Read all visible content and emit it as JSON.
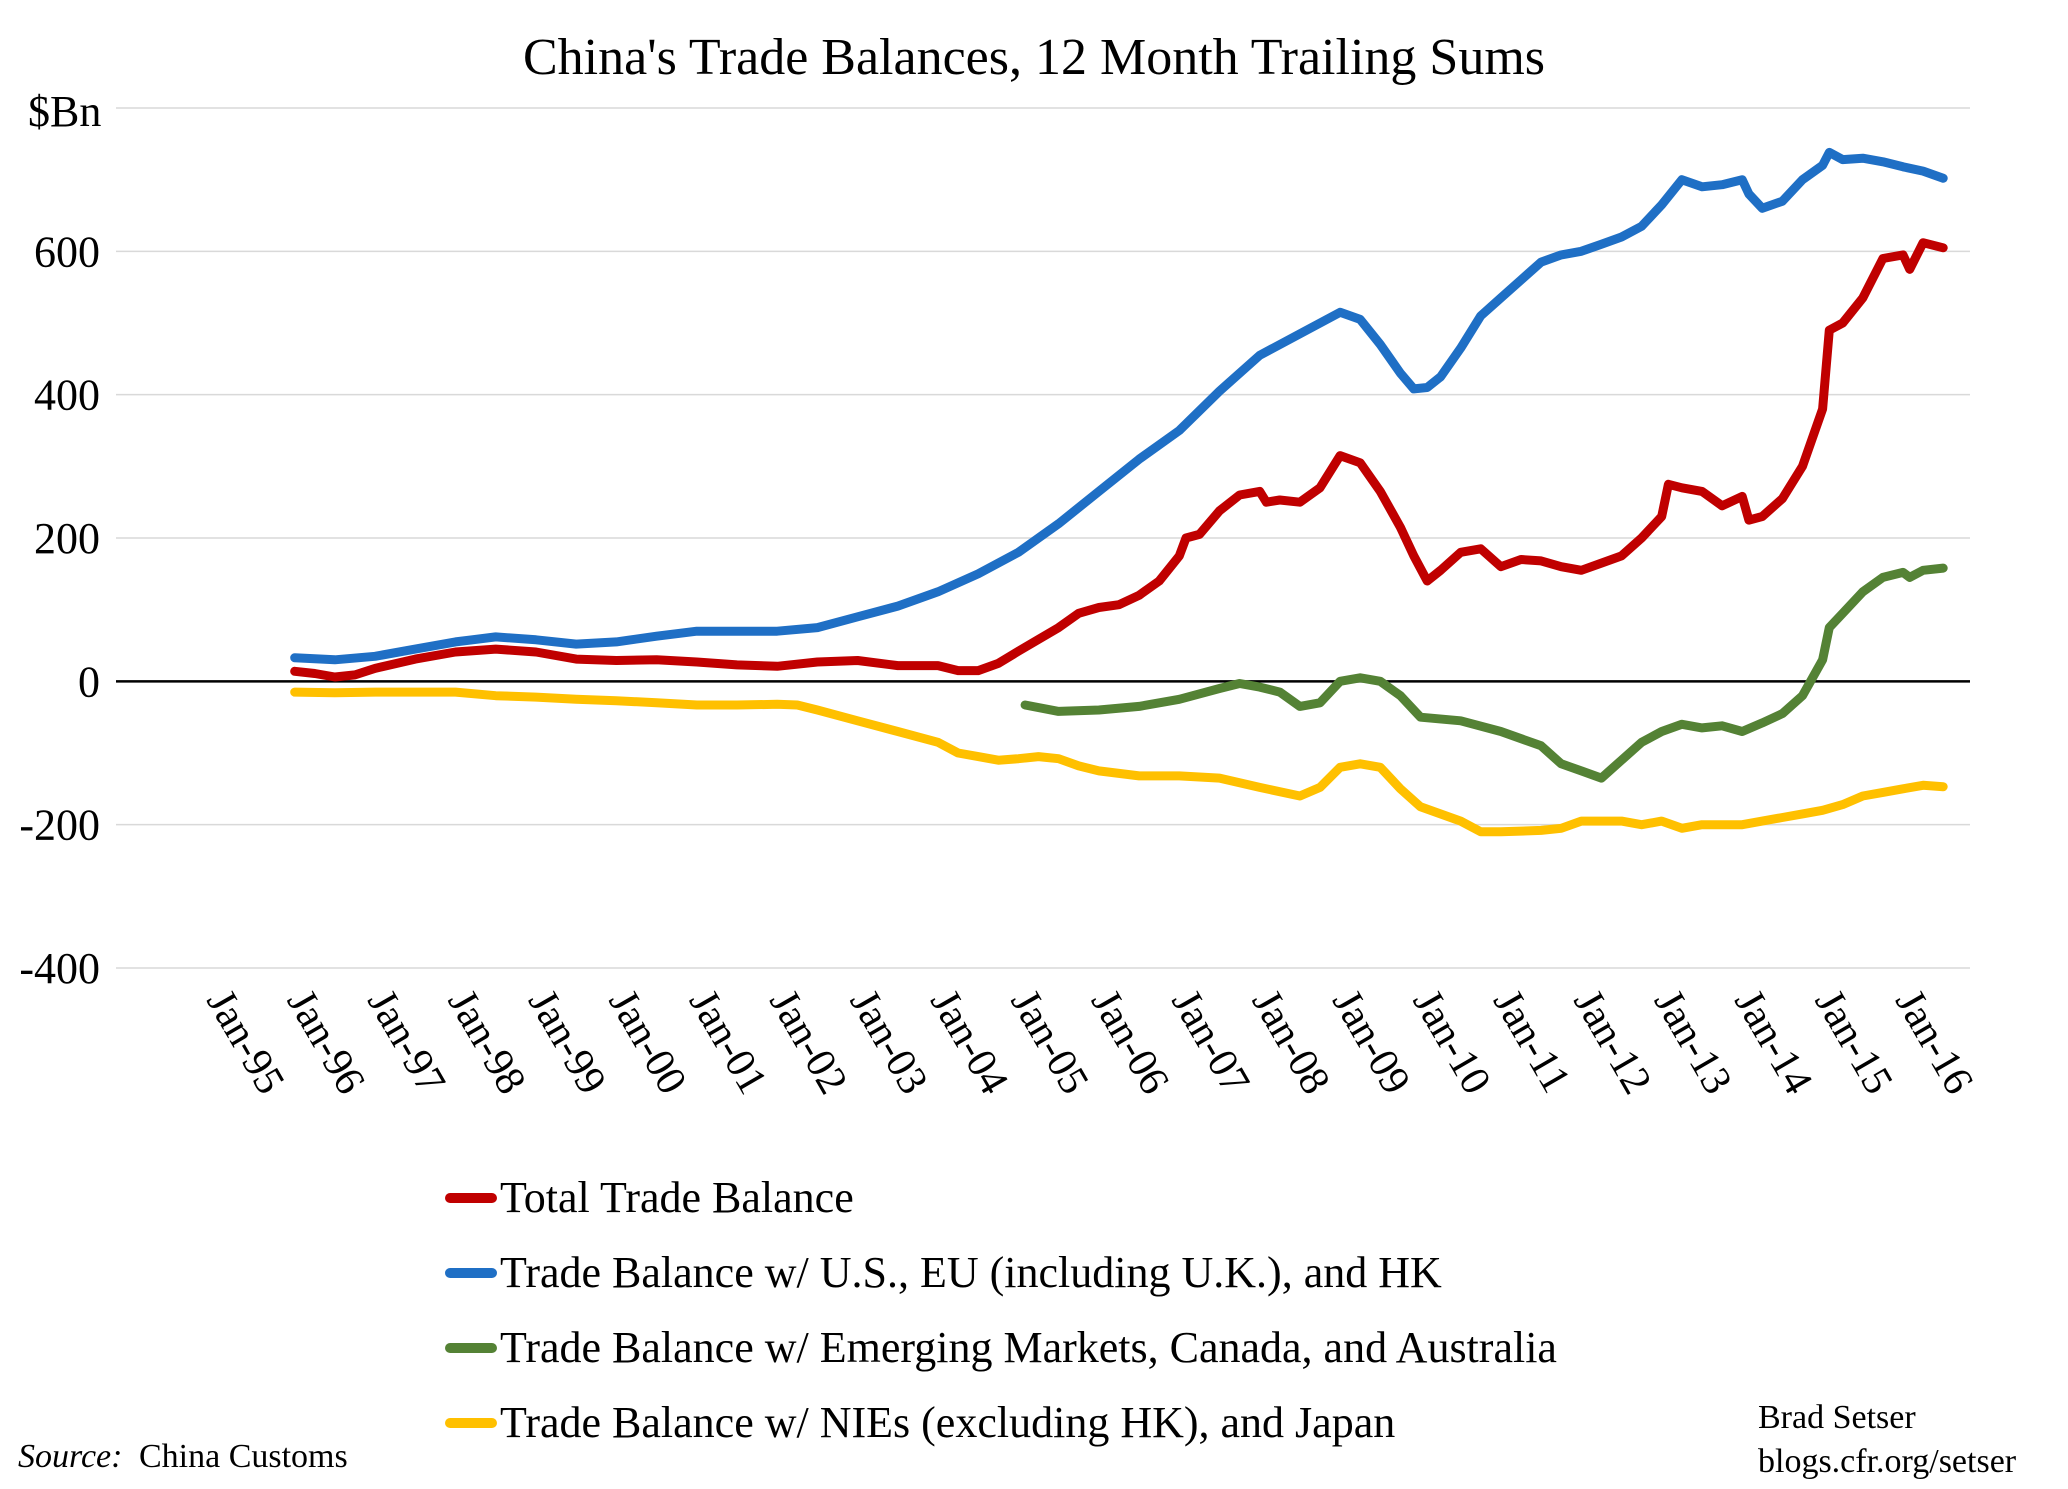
{
  "chart_data": {
    "type": "line",
    "title": "China's Trade Balances, 12 Month Trailing Sums",
    "ylabel": "$Bn",
    "xlabel": "",
    "ylim": [
      -400,
      800
    ],
    "yticks": [
      -400,
      -200,
      0,
      200,
      400,
      600
    ],
    "xlim": [
      "1995-01",
      "2016-12"
    ],
    "x_ticks": [
      "Jan-95",
      "Jan-96",
      "Jan-97",
      "Jan-98",
      "Jan-99",
      "Jan-00",
      "Jan-01",
      "Jan-02",
      "Jan-03",
      "Jan-04",
      "Jan-05",
      "Jan-06",
      "Jan-07",
      "Jan-08",
      "Jan-09",
      "Jan-10",
      "Jan-11",
      "Jan-12",
      "Jan-13",
      "Jan-14",
      "Jan-15",
      "Jan-16"
    ],
    "grid": "horizontal",
    "legend_position": "bottom",
    "series": [
      {
        "name": "Total Trade Balance",
        "color": "#c00000",
        "points": [
          [
            "1995-12",
            14
          ],
          [
            "1996-03",
            11
          ],
          [
            "1996-06",
            6
          ],
          [
            "1996-09",
            9
          ],
          [
            "1996-12",
            18
          ],
          [
            "1997-06",
            31
          ],
          [
            "1997-12",
            41
          ],
          [
            "1998-06",
            45
          ],
          [
            "1998-12",
            41
          ],
          [
            "1999-06",
            31
          ],
          [
            "1999-12",
            29
          ],
          [
            "2000-06",
            30
          ],
          [
            "2000-12",
            27
          ],
          [
            "2001-06",
            23
          ],
          [
            "2001-12",
            21
          ],
          [
            "2002-06",
            27
          ],
          [
            "2002-12",
            29
          ],
          [
            "2003-06",
            22
          ],
          [
            "2003-12",
            22
          ],
          [
            "2004-03",
            15
          ],
          [
            "2004-06",
            15
          ],
          [
            "2004-09",
            25
          ],
          [
            "2004-12",
            42
          ],
          [
            "2005-06",
            75
          ],
          [
            "2005-09",
            95
          ],
          [
            "2005-12",
            103
          ],
          [
            "2006-03",
            107
          ],
          [
            "2006-06",
            120
          ],
          [
            "2006-09",
            140
          ],
          [
            "2006-12",
            175
          ],
          [
            "2007-01",
            200
          ],
          [
            "2007-03",
            205
          ],
          [
            "2007-06",
            238
          ],
          [
            "2007-09",
            260
          ],
          [
            "2007-12",
            265
          ],
          [
            "2008-01",
            250
          ],
          [
            "2008-03",
            253
          ],
          [
            "2008-06",
            250
          ],
          [
            "2008-09",
            270
          ],
          [
            "2008-12",
            315
          ],
          [
            "2009-03",
            305
          ],
          [
            "2009-06",
            265
          ],
          [
            "2009-09",
            215
          ],
          [
            "2009-11",
            175
          ],
          [
            "2010-01",
            140
          ],
          [
            "2010-03",
            155
          ],
          [
            "2010-06",
            180
          ],
          [
            "2010-09",
            185
          ],
          [
            "2010-12",
            160
          ],
          [
            "2011-03",
            170
          ],
          [
            "2011-06",
            168
          ],
          [
            "2011-09",
            160
          ],
          [
            "2011-12",
            155
          ],
          [
            "2012-03",
            165
          ],
          [
            "2012-06",
            175
          ],
          [
            "2012-09",
            200
          ],
          [
            "2012-12",
            230
          ],
          [
            "2013-01",
            275
          ],
          [
            "2013-03",
            270
          ],
          [
            "2013-06",
            265
          ],
          [
            "2013-09",
            245
          ],
          [
            "2013-12",
            258
          ],
          [
            "2014-01",
            225
          ],
          [
            "2014-03",
            230
          ],
          [
            "2014-06",
            255
          ],
          [
            "2014-09",
            300
          ],
          [
            "2014-12",
            380
          ],
          [
            "2015-01",
            490
          ],
          [
            "2015-03",
            500
          ],
          [
            "2015-06",
            535
          ],
          [
            "2015-09",
            590
          ],
          [
            "2015-12",
            595
          ],
          [
            "2016-01",
            575
          ],
          [
            "2016-03",
            612
          ],
          [
            "2016-06",
            605
          ]
        ]
      },
      {
        "name": "Trade Balance w/ U.S., EU (including U.K.), and HK",
        "color": "#1f6fc5",
        "points": [
          [
            "1995-12",
            33
          ],
          [
            "1996-06",
            30
          ],
          [
            "1996-12",
            35
          ],
          [
            "1997-06",
            45
          ],
          [
            "1997-12",
            55
          ],
          [
            "1998-06",
            62
          ],
          [
            "1998-12",
            58
          ],
          [
            "1999-06",
            52
          ],
          [
            "1999-12",
            55
          ],
          [
            "2000-06",
            63
          ],
          [
            "2000-12",
            70
          ],
          [
            "2001-06",
            70
          ],
          [
            "2001-12",
            70
          ],
          [
            "2002-06",
            75
          ],
          [
            "2002-12",
            90
          ],
          [
            "2003-06",
            105
          ],
          [
            "2003-12",
            125
          ],
          [
            "2004-06",
            150
          ],
          [
            "2004-12",
            180
          ],
          [
            "2005-06",
            220
          ],
          [
            "2005-12",
            265
          ],
          [
            "2006-06",
            310
          ],
          [
            "2006-12",
            350
          ],
          [
            "2007-06",
            405
          ],
          [
            "2007-12",
            455
          ],
          [
            "2008-06",
            485
          ],
          [
            "2008-12",
            515
          ],
          [
            "2009-03",
            505
          ],
          [
            "2009-06",
            470
          ],
          [
            "2009-09",
            430
          ],
          [
            "2009-11",
            408
          ],
          [
            "2010-01",
            410
          ],
          [
            "2010-03",
            425
          ],
          [
            "2010-06",
            465
          ],
          [
            "2010-09",
            510
          ],
          [
            "2010-12",
            535
          ],
          [
            "2011-03",
            560
          ],
          [
            "2011-06",
            585
          ],
          [
            "2011-09",
            595
          ],
          [
            "2011-12",
            600
          ],
          [
            "2012-03",
            610
          ],
          [
            "2012-06",
            620
          ],
          [
            "2012-09",
            635
          ],
          [
            "2012-12",
            665
          ],
          [
            "2013-03",
            700
          ],
          [
            "2013-06",
            690
          ],
          [
            "2013-09",
            693
          ],
          [
            "2013-12",
            700
          ],
          [
            "2014-01",
            680
          ],
          [
            "2014-03",
            660
          ],
          [
            "2014-06",
            670
          ],
          [
            "2014-09",
            700
          ],
          [
            "2014-12",
            720
          ],
          [
            "2015-01",
            738
          ],
          [
            "2015-03",
            728
          ],
          [
            "2015-06",
            730
          ],
          [
            "2015-09",
            725
          ],
          [
            "2015-12",
            718
          ],
          [
            "2016-03",
            712
          ],
          [
            "2016-06",
            702
          ]
        ]
      },
      {
        "name": "Trade Balance w/ Emerging Markets, Canada, and Australia",
        "color": "#548235",
        "points": [
          [
            "2005-01",
            -33
          ],
          [
            "2005-06",
            -42
          ],
          [
            "2005-12",
            -40
          ],
          [
            "2006-06",
            -35
          ],
          [
            "2006-12",
            -25
          ],
          [
            "2007-06",
            -10
          ],
          [
            "2007-09",
            -3
          ],
          [
            "2007-12",
            -8
          ],
          [
            "2008-03",
            -15
          ],
          [
            "2008-06",
            -35
          ],
          [
            "2008-09",
            -30
          ],
          [
            "2008-12",
            0
          ],
          [
            "2009-03",
            5
          ],
          [
            "2009-06",
            0
          ],
          [
            "2009-09",
            -20
          ],
          [
            "2009-12",
            -50
          ],
          [
            "2010-06",
            -55
          ],
          [
            "2010-12",
            -70
          ],
          [
            "2011-06",
            -90
          ],
          [
            "2011-09",
            -115
          ],
          [
            "2011-12",
            -125
          ],
          [
            "2012-03",
            -135
          ],
          [
            "2012-06",
            -110
          ],
          [
            "2012-09",
            -85
          ],
          [
            "2012-12",
            -70
          ],
          [
            "2013-03",
            -60
          ],
          [
            "2013-06",
            -65
          ],
          [
            "2013-09",
            -62
          ],
          [
            "2013-12",
            -70
          ],
          [
            "2014-03",
            -58
          ],
          [
            "2014-06",
            -45
          ],
          [
            "2014-09",
            -20
          ],
          [
            "2014-12",
            30
          ],
          [
            "2015-01",
            75
          ],
          [
            "2015-03",
            95
          ],
          [
            "2015-06",
            125
          ],
          [
            "2015-09",
            145
          ],
          [
            "2015-12",
            152
          ],
          [
            "2016-01",
            145
          ],
          [
            "2016-03",
            155
          ],
          [
            "2016-06",
            158
          ]
        ]
      },
      {
        "name": "Trade Balance w/ NIEs (excluding HK), and Japan",
        "color": "#ffc000",
        "points": [
          [
            "1995-12",
            -15
          ],
          [
            "1996-06",
            -16
          ],
          [
            "1996-12",
            -15
          ],
          [
            "1997-06",
            -15
          ],
          [
            "1997-12",
            -15
          ],
          [
            "1998-06",
            -20
          ],
          [
            "1998-12",
            -22
          ],
          [
            "1999-06",
            -25
          ],
          [
            "1999-12",
            -27
          ],
          [
            "2000-06",
            -30
          ],
          [
            "2000-12",
            -33
          ],
          [
            "2001-06",
            -33
          ],
          [
            "2001-12",
            -32
          ],
          [
            "2002-03",
            -33
          ],
          [
            "2002-06",
            -40
          ],
          [
            "2002-12",
            -55
          ],
          [
            "2003-06",
            -70
          ],
          [
            "2003-12",
            -85
          ],
          [
            "2004-03",
            -100
          ],
          [
            "2004-06",
            -105
          ],
          [
            "2004-09",
            -110
          ],
          [
            "2004-12",
            -108
          ],
          [
            "2005-03",
            -105
          ],
          [
            "2005-06",
            -108
          ],
          [
            "2005-09",
            -118
          ],
          [
            "2005-12",
            -125
          ],
          [
            "2006-06",
            -132
          ],
          [
            "2006-12",
            -132
          ],
          [
            "2007-06",
            -135
          ],
          [
            "2007-12",
            -148
          ],
          [
            "2008-06",
            -160
          ],
          [
            "2008-09",
            -148
          ],
          [
            "2008-12",
            -120
          ],
          [
            "2009-03",
            -115
          ],
          [
            "2009-06",
            -120
          ],
          [
            "2009-09",
            -150
          ],
          [
            "2009-12",
            -175
          ],
          [
            "2010-06",
            -195
          ],
          [
            "2010-09",
            -210
          ],
          [
            "2010-12",
            -210
          ],
          [
            "2011-06",
            -208
          ],
          [
            "2011-09",
            -205
          ],
          [
            "2011-12",
            -195
          ],
          [
            "2012-06",
            -195
          ],
          [
            "2012-09",
            -200
          ],
          [
            "2012-12",
            -195
          ],
          [
            "2013-03",
            -205
          ],
          [
            "2013-06",
            -200
          ],
          [
            "2013-12",
            -200
          ],
          [
            "2014-03",
            -195
          ],
          [
            "2014-06",
            -190
          ],
          [
            "2014-09",
            -185
          ],
          [
            "2014-12",
            -180
          ],
          [
            "2015-03",
            -172
          ],
          [
            "2015-06",
            -160
          ],
          [
            "2015-09",
            -155
          ],
          [
            "2015-12",
            -150
          ],
          [
            "2016-03",
            -145
          ],
          [
            "2016-06",
            -147
          ]
        ]
      }
    ],
    "source_label": "Source:",
    "source_value": "China Customs",
    "credit_lines": [
      "Brad Setser",
      "blogs.cfr.org/setser"
    ]
  }
}
